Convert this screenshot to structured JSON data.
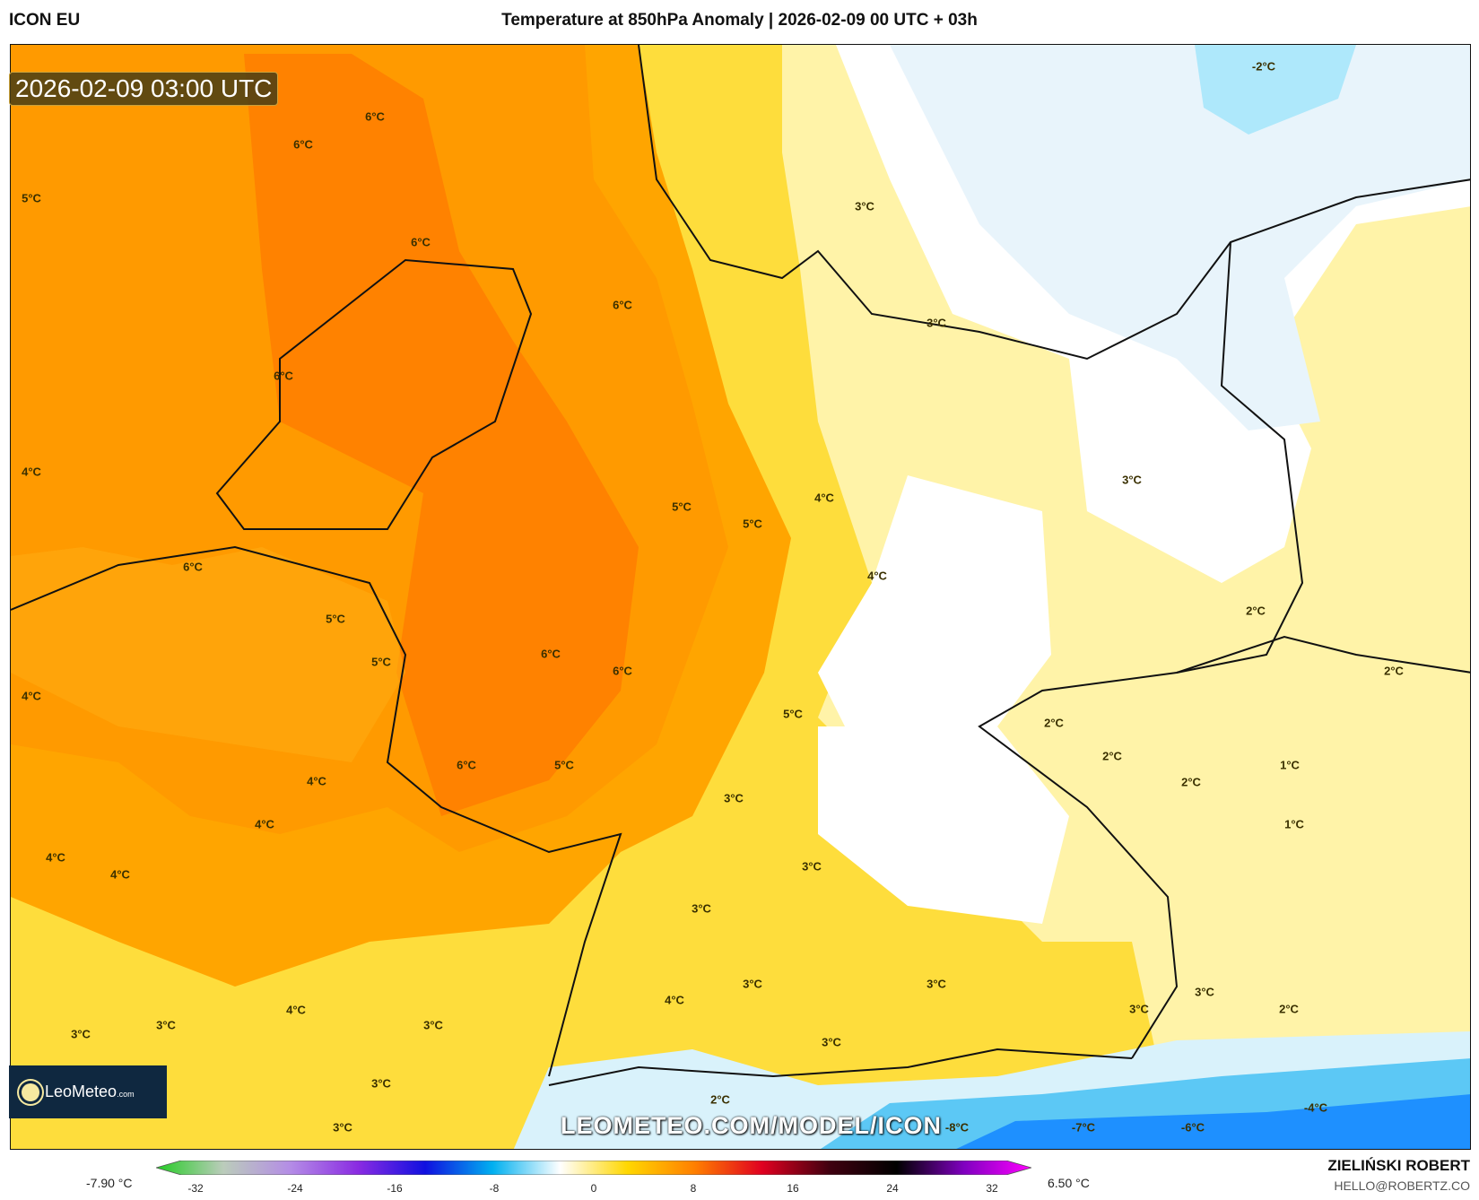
{
  "header": {
    "model": "ICON EU",
    "title": "Temperature at 850hPa Anomaly | 2026-02-09 00 UTC + 03h"
  },
  "map": {
    "valid_time": "2026-02-09 03:00 UTC",
    "watermark": "LEOMETEO.COM/MODEL/ICON",
    "labels": [
      "6°C",
      "6°C",
      "5°C",
      "6°C",
      "6°C",
      "3°C",
      "3°C",
      "6°C",
      "4°C",
      "5°C",
      "5°C",
      "4°C",
      "3°C",
      "6°C",
      "4°C",
      "2°C",
      "5°C",
      "5°C",
      "6°C",
      "6°C",
      "4°C",
      "2°C",
      "5°C",
      "2°C",
      "2°C",
      "6°C",
      "5°C",
      "1°C",
      "4°C",
      "2°C",
      "3°C",
      "1°C",
      "4°C",
      "4°C",
      "4°C",
      "3°C",
      "3°C",
      "3°C",
      "3°C",
      "3°C",
      "4°C",
      "2°C",
      "3°C",
      "4°C",
      "3°C",
      "3°C",
      "3°C",
      "3°C",
      "3°C",
      "2°C",
      "-4°C",
      "3°C",
      "-8°C",
      "-7°C",
      "-6°C",
      "-2°C"
    ]
  },
  "logo": {
    "brand": "LeoMeteo",
    "suffix": ".com"
  },
  "colorbar": {
    "min_label": "-7.90 °C",
    "max_label": "6.50 °C",
    "ticks": [
      "-32",
      "-24",
      "-16",
      "-8",
      "0",
      "8",
      "16",
      "24",
      "32"
    ],
    "colors": [
      "#22cc22",
      "#bbccbb",
      "#b48ce6",
      "#8a2be2",
      "#1010e0",
      "#00b0f0",
      "#ffffff",
      "#ffd700",
      "#ff7f00",
      "#e00020",
      "#400010",
      "#000000",
      "#8000c0",
      "#ff00ff"
    ]
  },
  "footer": {
    "author": "ZIELIŃSKI ROBERT",
    "email": "HELLO@ROBERTZ.CO"
  }
}
